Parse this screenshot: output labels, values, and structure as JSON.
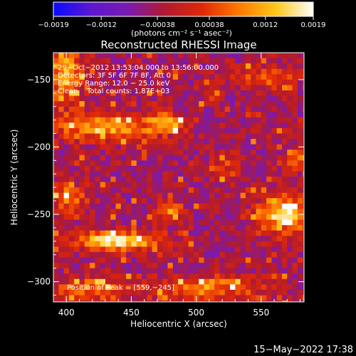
{
  "chart_data": {
    "type": "heatmap",
    "title": "Reconstructed RHESSI Image",
    "xlabel": "Heliocentric X (arcsec)",
    "ylabel": "Heliocentric Y (arcsec)",
    "xlim": [
      390,
      583
    ],
    "ylim": [
      -315,
      -130
    ],
    "x_ticks": [
      {
        "value": 400,
        "label": "400"
      },
      {
        "value": 450,
        "label": "450"
      },
      {
        "value": 500,
        "label": "500"
      },
      {
        "value": 550,
        "label": "550"
      }
    ],
    "y_ticks": [
      {
        "value": -150,
        "label": "−150"
      },
      {
        "value": -200,
        "label": "−200"
      },
      {
        "value": -250,
        "label": "−250"
      },
      {
        "value": -300,
        "label": "−300"
      }
    ],
    "colorbar": {
      "range": [
        -0.0019,
        0.0019
      ],
      "ticks": [
        {
          "value": -0.0019,
          "label": "−0.0019"
        },
        {
          "value": -0.0012,
          "label": "−0.0012"
        },
        {
          "value": -0.00038,
          "label": "−0.00038"
        },
        {
          "value": 0.00038,
          "label": "0.00038"
        },
        {
          "value": 0.0012,
          "label": "0.0012"
        },
        {
          "value": 0.0019,
          "label": "0.0019"
        }
      ],
      "unit_label": "(photons cm⁻² s⁻¹ asec⁻²)",
      "colors": [
        "#0a0aff",
        "#5a18cf",
        "#7a1ab0",
        "#b01a30",
        "#e02808",
        "#ff7a00",
        "#ffc81a",
        "#ffffff"
      ]
    },
    "annotations": [
      "29−Oct−2012 13:53:04.000 to 13:56:00.000",
      "Detectors: 3F 5F 6F 7F 8F, Att 0",
      "Energy Range: 12.0 − 25.0 keV",
      "Clean    Total counts: 1.87E+03"
    ],
    "peak_label": "Position of Peak = [559,−245]",
    "peak": [
      559,
      -245
    ],
    "sources": [
      {
        "x": 440,
        "y": -270,
        "sx": 24,
        "sy": 5,
        "amp": 1.0
      },
      {
        "x": 568,
        "y": -250,
        "sx": 14,
        "sy": 10,
        "amp": 1.0
      },
      {
        "x": 430,
        "y": -185,
        "sx": 28,
        "sy": 7,
        "amp": 0.75
      },
      {
        "x": 478,
        "y": -183,
        "sx": 10,
        "sy": 5,
        "amp": 0.65
      },
      {
        "x": 398,
        "y": -145,
        "sx": 10,
        "sy": 16,
        "amp": 0.75
      },
      {
        "x": 402,
        "y": -238,
        "sx": 10,
        "sy": 8,
        "amp": 0.55
      },
      {
        "x": 480,
        "y": -247,
        "sx": 7,
        "sy": 5,
        "amp": 0.55
      },
      {
        "x": 575,
        "y": -210,
        "sx": 7,
        "sy": 6,
        "amp": 0.55
      },
      {
        "x": 510,
        "y": -305,
        "sx": 28,
        "sy": 6,
        "amp": 0.65
      },
      {
        "x": 420,
        "y": -305,
        "sx": 22,
        "sy": 5,
        "amp": 0.55
      },
      {
        "x": 555,
        "y": -148,
        "sx": 18,
        "sy": 6,
        "amp": 0.45
      },
      {
        "x": 525,
        "y": -215,
        "sx": 8,
        "sy": 8,
        "amp": 0.35
      }
    ]
  },
  "footer_timestamp": "15−May−2022 17:38"
}
